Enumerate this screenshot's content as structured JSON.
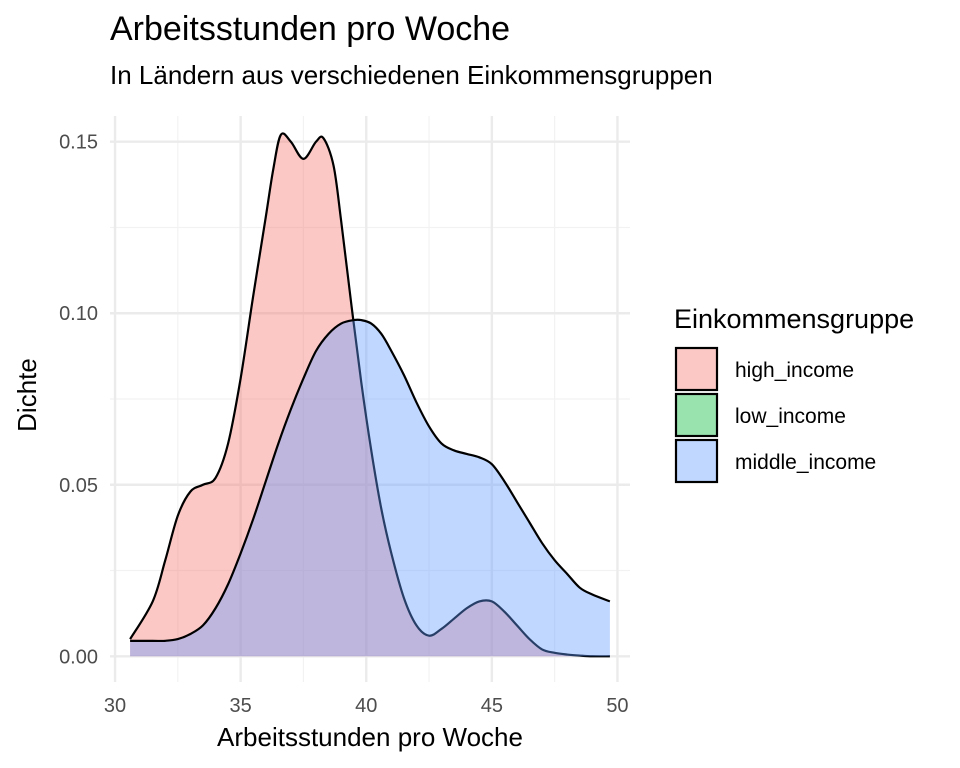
{
  "chart_data": {
    "type": "area",
    "title": "Arbeitsstunden pro Woche",
    "subtitle": "In Ländern aus verschiedenen Einkommensgruppen",
    "xlabel": "Arbeitsstunden pro Woche",
    "ylabel": "Dichte",
    "xlim": [
      29.8,
      50.5
    ],
    "ylim": [
      -0.0075,
      0.1575
    ],
    "x_ticks": [
      30,
      35,
      40,
      45,
      50
    ],
    "x_tick_labels": [
      "30",
      "35",
      "40",
      "45",
      "50"
    ],
    "y_ticks": [
      0.0,
      0.05,
      0.1,
      0.15
    ],
    "y_tick_labels": [
      "0.00",
      "0.05",
      "0.10",
      "0.15"
    ],
    "grid": true,
    "legend": {
      "title": "Einkommensgruppe",
      "position": "right",
      "entries": [
        "high_income",
        "low_income",
        "middle_income"
      ]
    },
    "series": [
      {
        "name": "high_income",
        "color": "#F8766D",
        "x": [
          30.6,
          31.5,
          32.0,
          32.5,
          33.0,
          33.5,
          34.0,
          34.5,
          35.0,
          35.5,
          36.0,
          36.3,
          36.6,
          37.0,
          37.5,
          38.0,
          38.3,
          38.7,
          39.0,
          39.4,
          39.8,
          40.2,
          40.6,
          41.0,
          41.5,
          42.0,
          42.5,
          43.0,
          43.5,
          44.0,
          44.5,
          45.0,
          45.5,
          46.0,
          46.5,
          47.0,
          47.5,
          48.0,
          48.5,
          49.0,
          49.7
        ],
        "values": [
          0.005,
          0.016,
          0.028,
          0.041,
          0.048,
          0.05,
          0.052,
          0.062,
          0.081,
          0.105,
          0.128,
          0.142,
          0.152,
          0.15,
          0.145,
          0.15,
          0.151,
          0.143,
          0.127,
          0.103,
          0.08,
          0.06,
          0.043,
          0.03,
          0.017,
          0.009,
          0.006,
          0.008,
          0.011,
          0.014,
          0.016,
          0.016,
          0.013,
          0.009,
          0.005,
          0.002,
          0.001,
          0.0005,
          0.0002,
          0.0,
          0.0
        ]
      },
      {
        "name": "low_income",
        "color": "#00BA38",
        "x": [],
        "values": []
      },
      {
        "name": "middle_income",
        "color": "#619CFF",
        "x": [
          30.6,
          31.5,
          32.0,
          32.5,
          33.0,
          33.5,
          34.0,
          34.5,
          35.0,
          35.5,
          36.0,
          36.5,
          37.0,
          37.5,
          38.0,
          38.5,
          39.0,
          39.5,
          39.8,
          40.2,
          40.6,
          41.0,
          41.5,
          42.0,
          42.5,
          43.0,
          43.5,
          44.0,
          44.5,
          45.0,
          45.5,
          46.0,
          46.5,
          47.0,
          47.5,
          48.0,
          48.5,
          49.0,
          49.7
        ],
        "values": [
          0.0045,
          0.0045,
          0.0045,
          0.005,
          0.0065,
          0.009,
          0.014,
          0.021,
          0.03,
          0.04,
          0.051,
          0.062,
          0.072,
          0.081,
          0.089,
          0.094,
          0.097,
          0.098,
          0.098,
          0.097,
          0.094,
          0.089,
          0.082,
          0.074,
          0.067,
          0.062,
          0.06,
          0.059,
          0.058,
          0.056,
          0.051,
          0.045,
          0.039,
          0.033,
          0.028,
          0.024,
          0.02,
          0.018,
          0.016
        ]
      }
    ]
  }
}
